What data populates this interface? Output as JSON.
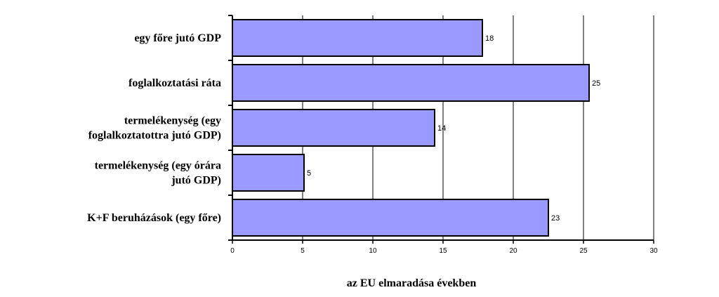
{
  "chart_data": {
    "type": "bar",
    "orientation": "horizontal",
    "categories": [
      "egy főre jutó GDP",
      "foglalkoztatási ráta",
      "termelékenység (egy foglalkoztatottra jutó GDP)",
      "termelékenység (egy órára jutó GDP)",
      "K+F beruházások (egy főre)"
    ],
    "category_lines": [
      [
        "egy főre jutó GDP"
      ],
      [
        "foglalkoztatási ráta"
      ],
      [
        "termelékenység (egy",
        "foglalkoztatottra jutó GDP)"
      ],
      [
        "termelékenység (egy órára",
        "jutó GDP)"
      ],
      [
        "K+F beruházások (egy főre)"
      ]
    ],
    "values": [
      17.8,
      25.4,
      14.4,
      5.1,
      22.5
    ],
    "value_labels": [
      "18",
      "25",
      "14",
      "5",
      "23"
    ],
    "xlabel": "az EU elmaradása években",
    "xlim": [
      0,
      30
    ],
    "xticks": [
      0,
      5,
      10,
      15,
      20,
      25,
      30
    ],
    "grid": true,
    "bar_color": "#9999ff",
    "bar_edge_color": "#000000"
  }
}
